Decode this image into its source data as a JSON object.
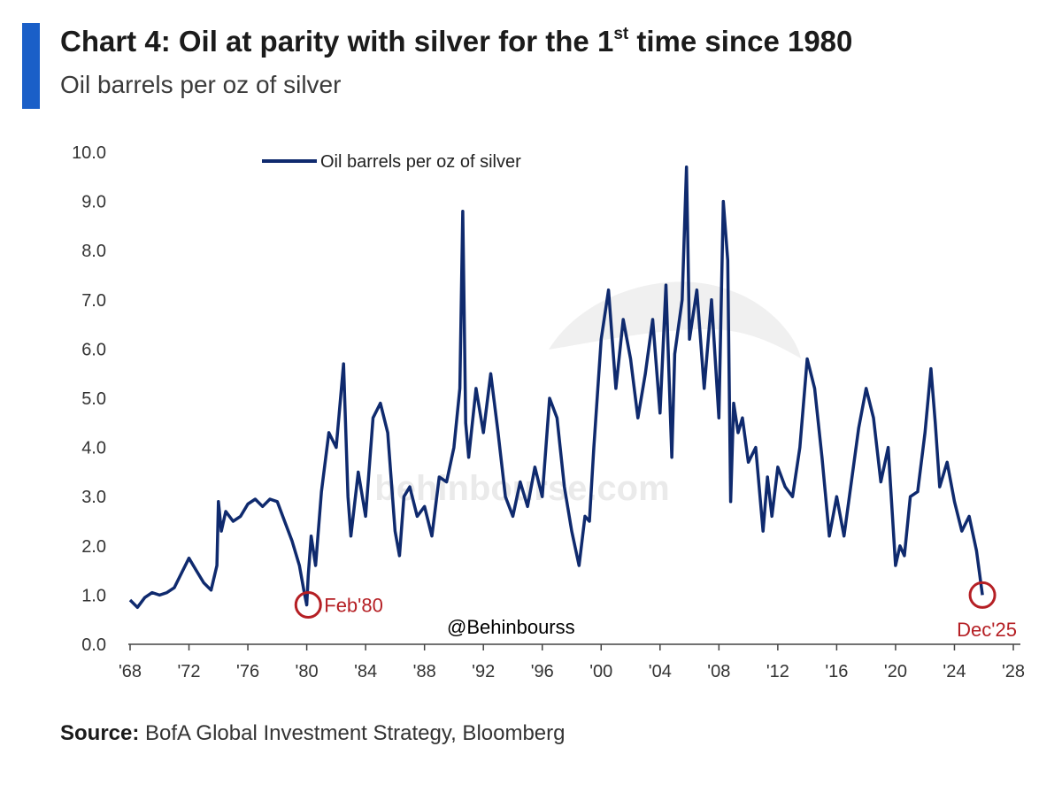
{
  "header": {
    "title": "Chart 4: Oil at parity with silver for the 1",
    "title_sup": "st",
    "title_rest": " time since 1980",
    "subtitle": "Oil barrels per oz of silver"
  },
  "source": {
    "label": "Source:",
    "text": " BofA Global Investment Strategy, Bloomberg"
  },
  "watermark": {
    "text": "behinbourse.com",
    "handle": "@Behinbourss"
  },
  "colors": {
    "accent": "#1a5fc8",
    "line": "#0f2a6e",
    "annotation": "#b51f24"
  },
  "chart_data": {
    "type": "line",
    "title": "",
    "xlabel": "",
    "ylabel": "",
    "xlim": [
      1968,
      2028
    ],
    "ylim": [
      0,
      10
    ],
    "y_ticks": [
      "0.0",
      "1.0",
      "2.0",
      "3.0",
      "4.0",
      "5.0",
      "6.0",
      "7.0",
      "8.0",
      "9.0",
      "10.0"
    ],
    "x_ticks": [
      {
        "year": 1968,
        "label": "'68"
      },
      {
        "year": 1972,
        "label": "'72"
      },
      {
        "year": 1976,
        "label": "'76"
      },
      {
        "year": 1980,
        "label": "'80"
      },
      {
        "year": 1984,
        "label": "'84"
      },
      {
        "year": 1988,
        "label": "'88"
      },
      {
        "year": 1992,
        "label": "'92"
      },
      {
        "year": 1996,
        "label": "'96"
      },
      {
        "year": 2000,
        "label": "'00"
      },
      {
        "year": 2004,
        "label": "'04"
      },
      {
        "year": 2008,
        "label": "'08"
      },
      {
        "year": 2012,
        "label": "'12"
      },
      {
        "year": 2016,
        "label": "'16"
      },
      {
        "year": 2020,
        "label": "'20"
      },
      {
        "year": 2024,
        "label": "'24"
      },
      {
        "year": 2028,
        "label": "'28"
      }
    ],
    "grid": false,
    "legend": "top-left",
    "series": [
      {
        "name": "Oil barrels per oz of silver",
        "x": [
          1968.0,
          1968.5,
          1969.0,
          1969.5,
          1970.0,
          1970.5,
          1971.0,
          1971.5,
          1972.0,
          1972.5,
          1973.0,
          1973.5,
          1973.9,
          1974.0,
          1974.2,
          1974.5,
          1975.0,
          1975.5,
          1976.0,
          1976.5,
          1977.0,
          1977.5,
          1978.0,
          1978.5,
          1979.0,
          1979.5,
          1979.8,
          1980.0,
          1980.1,
          1980.3,
          1980.6,
          1981.0,
          1981.5,
          1982.0,
          1982.5,
          1982.8,
          1983.0,
          1983.5,
          1984.0,
          1984.5,
          1985.0,
          1985.5,
          1986.0,
          1986.3,
          1986.6,
          1987.0,
          1987.5,
          1988.0,
          1988.5,
          1989.0,
          1989.5,
          1990.0,
          1990.4,
          1990.6,
          1990.8,
          1991.0,
          1991.5,
          1992.0,
          1992.5,
          1993.0,
          1993.5,
          1994.0,
          1994.5,
          1995.0,
          1995.5,
          1996.0,
          1996.5,
          1997.0,
          1997.5,
          1998.0,
          1998.5,
          1998.9,
          1999.2,
          1999.5,
          2000.0,
          2000.5,
          2001.0,
          2001.5,
          2002.0,
          2002.5,
          2003.0,
          2003.5,
          2004.0,
          2004.4,
          2004.8,
          2005.0,
          2005.5,
          2005.8,
          2006.0,
          2006.5,
          2007.0,
          2007.5,
          2008.0,
          2008.3,
          2008.6,
          2008.8,
          2009.0,
          2009.3,
          2009.6,
          2010.0,
          2010.5,
          2011.0,
          2011.3,
          2011.6,
          2012.0,
          2012.5,
          2013.0,
          2013.5,
          2014.0,
          2014.5,
          2015.0,
          2015.5,
          2016.0,
          2016.5,
          2017.0,
          2017.5,
          2018.0,
          2018.5,
          2019.0,
          2019.5,
          2020.0,
          2020.3,
          2020.6,
          2021.0,
          2021.5,
          2022.0,
          2022.4,
          2022.7,
          2023.0,
          2023.5,
          2024.0,
          2024.5,
          2025.0,
          2025.5,
          2025.9
        ],
        "y": [
          0.9,
          0.75,
          0.95,
          1.05,
          1.0,
          1.05,
          1.15,
          1.45,
          1.75,
          1.5,
          1.25,
          1.1,
          1.6,
          2.9,
          2.3,
          2.7,
          2.5,
          2.6,
          2.85,
          2.95,
          2.8,
          2.95,
          2.9,
          2.5,
          2.1,
          1.6,
          1.1,
          0.8,
          1.4,
          2.2,
          1.6,
          3.1,
          4.3,
          4.0,
          5.7,
          3.0,
          2.2,
          3.5,
          2.6,
          4.6,
          4.9,
          4.3,
          2.3,
          1.8,
          3.0,
          3.2,
          2.6,
          2.8,
          2.2,
          3.4,
          3.3,
          4.0,
          5.2,
          8.8,
          4.5,
          3.8,
          5.2,
          4.3,
          5.5,
          4.3,
          3.0,
          2.6,
          3.3,
          2.8,
          3.6,
          3.0,
          5.0,
          4.6,
          3.2,
          2.3,
          1.6,
          2.6,
          2.5,
          4.0,
          6.2,
          7.2,
          5.2,
          6.6,
          5.8,
          4.6,
          5.5,
          6.6,
          4.7,
          7.3,
          3.8,
          5.9,
          7.0,
          9.7,
          6.2,
          7.2,
          5.2,
          7.0,
          4.6,
          9.0,
          7.8,
          2.9,
          4.9,
          4.3,
          4.6,
          3.7,
          4.0,
          2.3,
          3.4,
          2.6,
          3.6,
          3.2,
          3.0,
          4.0,
          5.8,
          5.2,
          3.8,
          2.2,
          3.0,
          2.2,
          3.3,
          4.4,
          5.2,
          4.6,
          3.3,
          4.0,
          1.6,
          2.0,
          1.8,
          3.0,
          3.1,
          4.3,
          5.6,
          4.5,
          3.2,
          3.7,
          2.9,
          2.3,
          2.6,
          1.9,
          1.0
        ]
      }
    ],
    "annotations": [
      {
        "label": "Feb'80",
        "x": 1980.1,
        "y": 0.8
      },
      {
        "label": "Dec'25",
        "x": 2025.9,
        "y": 1.0
      }
    ]
  }
}
